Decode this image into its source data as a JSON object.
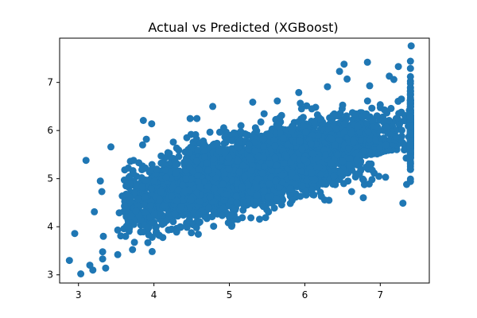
{
  "chart_data": {
    "type": "scatter",
    "title": "Actual vs Predicted (XGBoost)",
    "xlabel": "",
    "ylabel": "",
    "xlim": [
      2.75,
      7.65
    ],
    "ylim": [
      2.83,
      7.92
    ],
    "x_ticks": [
      3,
      4,
      5,
      6,
      7
    ],
    "y_ticks": [
      3,
      4,
      5,
      6,
      7
    ],
    "grid": false,
    "legend": "none",
    "marker_color": "#1f77b4",
    "cloud": {
      "n": 5200,
      "x_range": [
        3.6,
        7.4
      ],
      "slope": 0.42,
      "intercept": 2.95,
      "noise_sd": 0.34,
      "description_note": ""
    },
    "points": [
      {
        "x": 2.88,
        "y": 3.3
      },
      {
        "x": 2.95,
        "y": 3.86
      },
      {
        "x": 3.03,
        "y": 3.02
      },
      {
        "x": 3.1,
        "y": 5.38
      },
      {
        "x": 3.15,
        "y": 3.2
      },
      {
        "x": 3.19,
        "y": 3.1
      },
      {
        "x": 3.21,
        "y": 4.31
      },
      {
        "x": 3.29,
        "y": 4.95
      },
      {
        "x": 3.32,
        "y": 3.48
      },
      {
        "x": 3.33,
        "y": 3.8
      },
      {
        "x": 3.32,
        "y": 3.33
      },
      {
        "x": 3.31,
        "y": 4.73
      },
      {
        "x": 3.36,
        "y": 3.14
      },
      {
        "x": 3.43,
        "y": 5.66
      },
      {
        "x": 3.52,
        "y": 3.42
      },
      {
        "x": 3.52,
        "y": 3.93
      },
      {
        "x": 3.56,
        "y": 3.81
      },
      {
        "x": 3.54,
        "y": 4.29
      },
      {
        "x": 3.58,
        "y": 4.64
      },
      {
        "x": 3.61,
        "y": 4.43
      },
      {
        "x": 3.63,
        "y": 4.85
      },
      {
        "x": 3.66,
        "y": 5.22
      },
      {
        "x": 3.73,
        "y": 5.38
      },
      {
        "x": 3.8,
        "y": 5.33
      },
      {
        "x": 3.86,
        "y": 6.21
      },
      {
        "x": 3.85,
        "y": 5.7
      },
      {
        "x": 3.9,
        "y": 5.82
      },
      {
        "x": 3.89,
        "y": 4.97
      },
      {
        "x": 3.92,
        "y": 3.67
      },
      {
        "x": 3.93,
        "y": 3.98
      },
      {
        "x": 3.97,
        "y": 6.14
      },
      {
        "x": 4.03,
        "y": 3.87
      },
      {
        "x": 4.11,
        "y": 4.05
      },
      {
        "x": 4.3,
        "y": 3.89
      },
      {
        "x": 4.48,
        "y": 6.25
      },
      {
        "x": 4.57,
        "y": 6.25
      },
      {
        "x": 4.78,
        "y": 6.5
      },
      {
        "x": 5.03,
        "y": 4.01
      },
      {
        "x": 5.31,
        "y": 6.59
      },
      {
        "x": 5.48,
        "y": 4.19
      },
      {
        "x": 5.92,
        "y": 6.79
      },
      {
        "x": 6.22,
        "y": 4.63
      },
      {
        "x": 6.3,
        "y": 6.91
      },
      {
        "x": 6.32,
        "y": 4.55
      },
      {
        "x": 6.46,
        "y": 7.23
      },
      {
        "x": 6.52,
        "y": 7.38
      },
      {
        "x": 6.56,
        "y": 7.07
      },
      {
        "x": 6.62,
        "y": 4.73
      },
      {
        "x": 6.83,
        "y": 7.42
      },
      {
        "x": 6.86,
        "y": 6.93
      },
      {
        "x": 6.89,
        "y": 4.98
      },
      {
        "x": 7.07,
        "y": 5.03
      },
      {
        "x": 7.12,
        "y": 7.13
      },
      {
        "x": 7.18,
        "y": 7.06
      },
      {
        "x": 7.24,
        "y": 7.33
      },
      {
        "x": 7.3,
        "y": 4.49
      },
      {
        "x": 7.35,
        "y": 4.88
      },
      {
        "x": 7.41,
        "y": 7.76
      },
      {
        "x": 7.4,
        "y": 7.44
      },
      {
        "x": 7.4,
        "y": 7.29
      },
      {
        "x": 7.4,
        "y": 7.12
      },
      {
        "x": 7.4,
        "y": 6.98
      },
      {
        "x": 7.4,
        "y": 6.81
      },
      {
        "x": 7.4,
        "y": 5.92
      },
      {
        "x": 7.4,
        "y": 5.7
      },
      {
        "x": 7.4,
        "y": 5.51
      },
      {
        "x": 7.4,
        "y": 5.44
      },
      {
        "x": 7.4,
        "y": 5.32
      },
      {
        "x": 7.4,
        "y": 5.19
      },
      {
        "x": 7.4,
        "y": 4.99
      },
      {
        "x": 7.4,
        "y": 4.94
      }
    ]
  }
}
